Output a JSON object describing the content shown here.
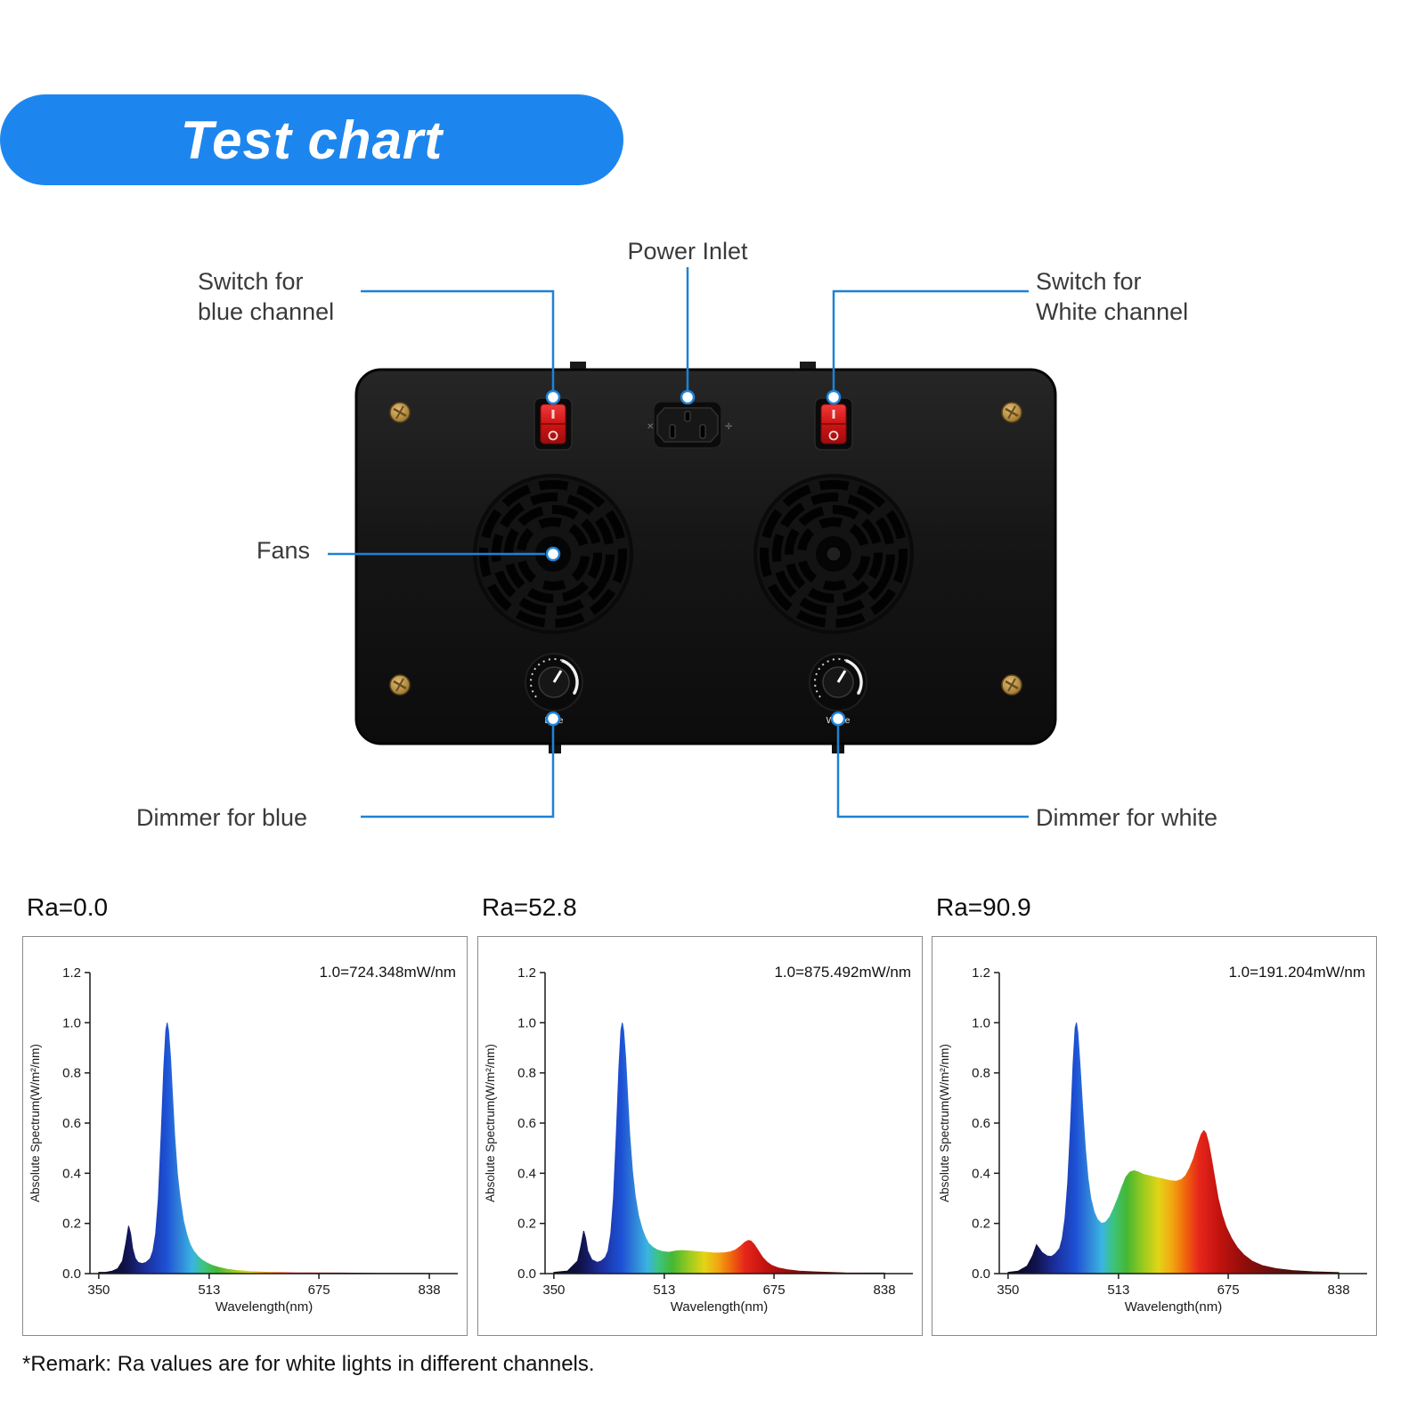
{
  "banner": {
    "title": "Test chart",
    "bg_color": "#1d86ee"
  },
  "diagram": {
    "accent_color": "#1d82d6",
    "labels": {
      "power_inlet": "Power Inlet",
      "switch_blue_1": "Switch for",
      "switch_blue_2": "blue channel",
      "switch_white_1": "Switch for",
      "switch_white_2": "White channel",
      "fans": "Fans",
      "dimmer_blue": "Dimmer for blue",
      "dimmer_white": "Dimmer for white",
      "knob_blue": "Blue",
      "knob_white": "White"
    }
  },
  "remark": "*Remark: Ra values are for white lights in different channels.",
  "spectrum_gradient": [
    [
      337,
      "#050508"
    ],
    [
      390,
      "#10124a"
    ],
    [
      420,
      "#1c2f9e"
    ],
    [
      450,
      "#1d51d6"
    ],
    [
      468,
      "#2f7fd8"
    ],
    [
      488,
      "#3ab4e2"
    ],
    [
      505,
      "#3cc47e"
    ],
    [
      525,
      "#45b733"
    ],
    [
      550,
      "#9ccb1e"
    ],
    [
      572,
      "#e3d416"
    ],
    [
      592,
      "#f2a711"
    ],
    [
      612,
      "#f0650d"
    ],
    [
      632,
      "#e6261b"
    ],
    [
      660,
      "#c4130f"
    ],
    [
      700,
      "#8f0d0b"
    ],
    [
      760,
      "#55100c"
    ],
    [
      870,
      "#1d0a08"
    ]
  ],
  "chart_data": [
    {
      "type": "area",
      "title": "Ra=0.0",
      "annotation": "1.0=724.348mW/nm",
      "xlabel": "Wavelength(nm)",
      "ylabel": "Absolute Spectrum(W/m²/nm)",
      "xlim": [
        337,
        880
      ],
      "ylim": [
        0,
        1.2
      ],
      "xticks": [
        350,
        513,
        675,
        838
      ],
      "xtick_labels": [
        "350",
        "513",
        "675",
        "838"
      ],
      "yticks": [
        0,
        0.2,
        0.4,
        0.6,
        0.8,
        1.0,
        1.2
      ],
      "ytick_labels": [
        "0.0",
        "0.2",
        "0.4",
        "0.6",
        "0.8",
        "1.0",
        "1.2"
      ],
      "points": [
        [
          350,
          0.005
        ],
        [
          360,
          0.005
        ],
        [
          370,
          0.01
        ],
        [
          378,
          0.02
        ],
        [
          385,
          0.05
        ],
        [
          390,
          0.12
        ],
        [
          394,
          0.19
        ],
        [
          397,
          0.16
        ],
        [
          400,
          0.1
        ],
        [
          404,
          0.06
        ],
        [
          408,
          0.045
        ],
        [
          414,
          0.04
        ],
        [
          420,
          0.045
        ],
        [
          426,
          0.06
        ],
        [
          430,
          0.09
        ],
        [
          434,
          0.16
        ],
        [
          438,
          0.3
        ],
        [
          442,
          0.55
        ],
        [
          446,
          0.82
        ],
        [
          449,
          0.97
        ],
        [
          451,
          1.0
        ],
        [
          453,
          0.97
        ],
        [
          456,
          0.86
        ],
        [
          459,
          0.7
        ],
        [
          462,
          0.55
        ],
        [
          466,
          0.4
        ],
        [
          470,
          0.3
        ],
        [
          475,
          0.21
        ],
        [
          480,
          0.155
        ],
        [
          485,
          0.115
        ],
        [
          490,
          0.09
        ],
        [
          496,
          0.07
        ],
        [
          502,
          0.055
        ],
        [
          510,
          0.042
        ],
        [
          518,
          0.032
        ],
        [
          528,
          0.024
        ],
        [
          540,
          0.017
        ],
        [
          555,
          0.012
        ],
        [
          575,
          0.008
        ],
        [
          600,
          0.005
        ],
        [
          640,
          0.003
        ],
        [
          700,
          0.002
        ],
        [
          770,
          0.001
        ],
        [
          838,
          0.001
        ]
      ]
    },
    {
      "type": "area",
      "title": "Ra=52.8",
      "annotation": "1.0=875.492mW/nm",
      "xlabel": "Wavelength(nm)",
      "ylabel": "Absolute Spectrum(W/m²/nm)",
      "xlim": [
        337,
        880
      ],
      "ylim": [
        0,
        1.2
      ],
      "xticks": [
        350,
        513,
        675,
        838
      ],
      "xtick_labels": [
        "350",
        "513",
        "675",
        "838"
      ],
      "yticks": [
        0,
        0.2,
        0.4,
        0.6,
        0.8,
        1.0,
        1.2
      ],
      "ytick_labels": [
        "0.0",
        "0.2",
        "0.4",
        "0.6",
        "0.8",
        "1.0",
        "1.2"
      ],
      "points": [
        [
          350,
          0.005
        ],
        [
          370,
          0.01
        ],
        [
          385,
          0.05
        ],
        [
          390,
          0.11
        ],
        [
          394,
          0.17
        ],
        [
          397,
          0.14
        ],
        [
          400,
          0.09
        ],
        [
          406,
          0.055
        ],
        [
          414,
          0.045
        ],
        [
          420,
          0.05
        ],
        [
          426,
          0.065
        ],
        [
          430,
          0.09
        ],
        [
          434,
          0.16
        ],
        [
          438,
          0.3
        ],
        [
          442,
          0.55
        ],
        [
          446,
          0.82
        ],
        [
          449,
          0.97
        ],
        [
          451,
          1.0
        ],
        [
          453,
          0.97
        ],
        [
          456,
          0.86
        ],
        [
          459,
          0.7
        ],
        [
          462,
          0.55
        ],
        [
          466,
          0.41
        ],
        [
          470,
          0.31
        ],
        [
          475,
          0.23
        ],
        [
          480,
          0.18
        ],
        [
          485,
          0.145
        ],
        [
          490,
          0.12
        ],
        [
          496,
          0.105
        ],
        [
          502,
          0.095
        ],
        [
          510,
          0.088
        ],
        [
          520,
          0.085
        ],
        [
          530,
          0.09
        ],
        [
          540,
          0.092
        ],
        [
          550,
          0.09
        ],
        [
          560,
          0.088
        ],
        [
          570,
          0.086
        ],
        [
          578,
          0.084
        ],
        [
          586,
          0.082
        ],
        [
          594,
          0.082
        ],
        [
          602,
          0.083
        ],
        [
          610,
          0.086
        ],
        [
          618,
          0.094
        ],
        [
          626,
          0.11
        ],
        [
          632,
          0.125
        ],
        [
          637,
          0.132
        ],
        [
          641,
          0.13
        ],
        [
          646,
          0.115
        ],
        [
          652,
          0.09
        ],
        [
          658,
          0.065
        ],
        [
          665,
          0.045
        ],
        [
          672,
          0.032
        ],
        [
          682,
          0.022
        ],
        [
          695,
          0.015
        ],
        [
          712,
          0.01
        ],
        [
          740,
          0.006
        ],
        [
          780,
          0.003
        ],
        [
          838,
          0.002
        ]
      ]
    },
    {
      "type": "area",
      "title": "Ra=90.9",
      "annotation": "1.0=191.204mW/nm",
      "xlabel": "Wavelength(nm)",
      "ylabel": "Absolute Spectrum(W/m²/nm)",
      "xlim": [
        337,
        880
      ],
      "ylim": [
        0,
        1.2
      ],
      "xticks": [
        350,
        513,
        675,
        838
      ],
      "xtick_labels": [
        "350",
        "513",
        "675",
        "838"
      ],
      "yticks": [
        0,
        0.2,
        0.4,
        0.6,
        0.8,
        1.0,
        1.2
      ],
      "ytick_labels": [
        "0.0",
        "0.2",
        "0.4",
        "0.6",
        "0.8",
        "1.0",
        "1.2"
      ],
      "points": [
        [
          350,
          0.005
        ],
        [
          365,
          0.01
        ],
        [
          378,
          0.03
        ],
        [
          386,
          0.07
        ],
        [
          392,
          0.115
        ],
        [
          396,
          0.1
        ],
        [
          400,
          0.085
        ],
        [
          408,
          0.07
        ],
        [
          414,
          0.068
        ],
        [
          420,
          0.08
        ],
        [
          426,
          0.1
        ],
        [
          430,
          0.14
        ],
        [
          434,
          0.22
        ],
        [
          438,
          0.36
        ],
        [
          442,
          0.58
        ],
        [
          446,
          0.84
        ],
        [
          449,
          0.98
        ],
        [
          451,
          1.0
        ],
        [
          453,
          0.96
        ],
        [
          456,
          0.84
        ],
        [
          460,
          0.66
        ],
        [
          464,
          0.5
        ],
        [
          468,
          0.38
        ],
        [
          472,
          0.3
        ],
        [
          477,
          0.245
        ],
        [
          482,
          0.215
        ],
        [
          488,
          0.2
        ],
        [
          494,
          0.205
        ],
        [
          500,
          0.225
        ],
        [
          506,
          0.26
        ],
        [
          512,
          0.3
        ],
        [
          518,
          0.345
        ],
        [
          524,
          0.385
        ],
        [
          530,
          0.405
        ],
        [
          536,
          0.41
        ],
        [
          542,
          0.405
        ],
        [
          550,
          0.395
        ],
        [
          558,
          0.39
        ],
        [
          566,
          0.385
        ],
        [
          574,
          0.38
        ],
        [
          582,
          0.375
        ],
        [
          590,
          0.37
        ],
        [
          598,
          0.368
        ],
        [
          606,
          0.375
        ],
        [
          612,
          0.39
        ],
        [
          618,
          0.42
        ],
        [
          624,
          0.46
        ],
        [
          630,
          0.515
        ],
        [
          635,
          0.555
        ],
        [
          639,
          0.57
        ],
        [
          642,
          0.56
        ],
        [
          646,
          0.52
        ],
        [
          650,
          0.46
        ],
        [
          655,
          0.38
        ],
        [
          660,
          0.3
        ],
        [
          666,
          0.235
        ],
        [
          672,
          0.185
        ],
        [
          680,
          0.14
        ],
        [
          688,
          0.105
        ],
        [
          698,
          0.075
        ],
        [
          710,
          0.05
        ],
        [
          725,
          0.032
        ],
        [
          745,
          0.02
        ],
        [
          770,
          0.012
        ],
        [
          800,
          0.007
        ],
        [
          838,
          0.004
        ]
      ]
    }
  ]
}
